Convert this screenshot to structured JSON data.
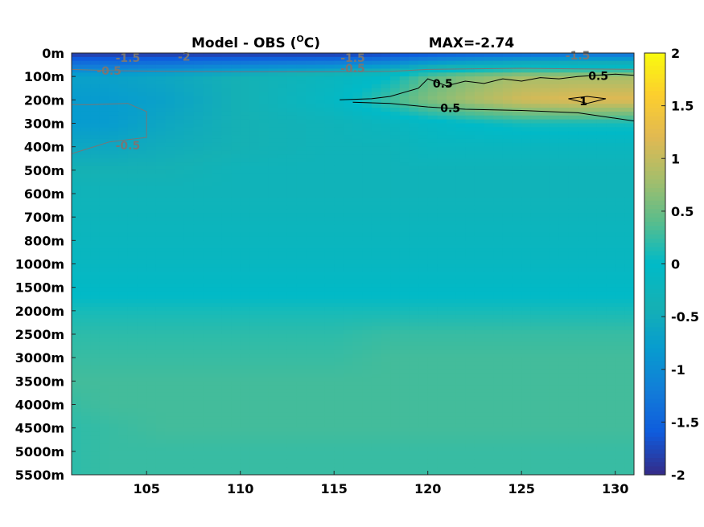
{
  "chart_data": {
    "type": "heatmap",
    "title_left": "Model - OBS (",
    "title_unit_sup": "O",
    "title_unit_rest": "C)",
    "title_right": "MAX=-2.74",
    "x_ticks": [
      105,
      110,
      115,
      120,
      125,
      130
    ],
    "xlim": [
      101,
      131
    ],
    "y_tick_labels": [
      "0m",
      "100m",
      "200m",
      "300m",
      "400m",
      "500m",
      "600m",
      "700m",
      "800m",
      "1000m",
      "1500m",
      "2000m",
      "2500m",
      "3000m",
      "3500m",
      "4000m",
      "4500m",
      "5000m",
      "5500m"
    ],
    "y_levels": [
      0,
      100,
      200,
      300,
      400,
      500,
      600,
      700,
      800,
      1000,
      1500,
      2000,
      2500,
      3000,
      3500,
      4000,
      4500,
      5000,
      5500
    ],
    "colorbar": {
      "min": -2,
      "max": 2,
      "ticks": [
        2,
        1.5,
        1,
        0.5,
        0,
        -0.5,
        -1,
        -1.5,
        -2
      ],
      "colormap": "parula"
    },
    "field": {
      "x": [
        101,
        103,
        106,
        110,
        115,
        118,
        120,
        122,
        125,
        128,
        131
      ],
      "values_by_level": [
        [
          -1.9,
          -1.9,
          -1.9,
          -1.9,
          -1.9,
          -1.8,
          -1.7,
          -1.6,
          -1.5,
          -1.4,
          -1.4
        ],
        [
          -0.7,
          -0.7,
          -0.6,
          -0.4,
          -0.2,
          0.0,
          0.4,
          0.6,
          0.8,
          0.8,
          0.8
        ],
        [
          -0.8,
          -0.8,
          -0.7,
          -0.4,
          -0.1,
          0.3,
          0.6,
          0.8,
          1.1,
          1.2,
          1.2
        ],
        [
          -0.8,
          -0.8,
          -0.6,
          -0.4,
          -0.3,
          -0.2,
          -0.1,
          0.0,
          0.1,
          0.1,
          0.1
        ],
        [
          -0.6,
          -0.6,
          -0.5,
          -0.4,
          -0.3,
          -0.3,
          -0.2,
          -0.2,
          -0.2,
          -0.2,
          -0.2
        ],
        [
          -0.4,
          -0.4,
          -0.4,
          -0.3,
          -0.3,
          -0.3,
          -0.3,
          -0.3,
          -0.3,
          -0.3,
          -0.3
        ],
        [
          -0.3,
          -0.3,
          -0.3,
          -0.3,
          -0.3,
          -0.3,
          -0.3,
          -0.3,
          -0.3,
          -0.3,
          -0.3
        ],
        [
          -0.25,
          -0.25,
          -0.25,
          -0.25,
          -0.25,
          -0.25,
          -0.25,
          -0.25,
          -0.25,
          -0.25,
          -0.25
        ],
        [
          -0.2,
          -0.2,
          -0.2,
          -0.2,
          -0.2,
          -0.2,
          -0.2,
          -0.2,
          -0.2,
          -0.2,
          -0.2
        ],
        [
          -0.15,
          -0.15,
          -0.15,
          -0.15,
          -0.15,
          -0.15,
          -0.15,
          -0.15,
          -0.15,
          -0.15,
          -0.15
        ],
        [
          -0.05,
          -0.05,
          -0.05,
          -0.05,
          -0.05,
          -0.05,
          -0.05,
          -0.05,
          -0.05,
          -0.05,
          -0.05
        ],
        [
          0.1,
          0.1,
          0.1,
          0.1,
          0.1,
          0.1,
          0.1,
          0.1,
          0.1,
          0.1,
          0.1
        ],
        [
          0.2,
          0.2,
          0.2,
          0.2,
          0.2,
          0.25,
          0.25,
          0.25,
          0.25,
          0.25,
          0.25
        ],
        [
          0.25,
          0.25,
          0.25,
          0.25,
          0.25,
          0.3,
          0.3,
          0.3,
          0.3,
          0.3,
          0.3
        ],
        [
          0.3,
          0.3,
          0.3,
          0.3,
          0.3,
          0.3,
          0.3,
          0.3,
          0.3,
          0.3,
          0.3
        ],
        [
          0.25,
          0.3,
          0.3,
          0.3,
          0.3,
          0.3,
          0.3,
          0.3,
          0.3,
          0.3,
          0.3
        ],
        [
          0.2,
          0.25,
          0.3,
          0.3,
          0.3,
          0.3,
          0.3,
          0.3,
          0.3,
          0.3,
          0.3
        ],
        [
          0.2,
          0.25,
          0.25,
          0.25,
          0.25,
          0.25,
          0.25,
          0.25,
          0.25,
          0.25,
          0.25
        ],
        [
          0.2,
          0.25,
          0.25,
          0.25,
          0.25,
          0.25,
          0.25,
          0.25,
          0.25,
          0.25,
          0.25
        ]
      ]
    },
    "contours": [
      {
        "level": "0.5",
        "color": "#000000",
        "points": [
          [
            115.3,
            200
          ],
          [
            117,
            195
          ],
          [
            118,
            185
          ],
          [
            119.5,
            150
          ],
          [
            120,
            110
          ],
          [
            121,
            140
          ],
          [
            122,
            120
          ],
          [
            123,
            130
          ],
          [
            124,
            110
          ],
          [
            125,
            120
          ],
          [
            126,
            105
          ],
          [
            127,
            110
          ],
          [
            128,
            100
          ],
          [
            129,
            95
          ],
          [
            130,
            90
          ],
          [
            131,
            95
          ]
        ]
      },
      {
        "level": "0.5",
        "color": "#000000",
        "points": [
          [
            116,
            210
          ],
          [
            118,
            215
          ],
          [
            120,
            230
          ],
          [
            122,
            240
          ],
          [
            125,
            245
          ],
          [
            128,
            255
          ],
          [
            131,
            290
          ]
        ]
      },
      {
        "level": "1",
        "color": "#000000",
        "points": [
          [
            127.5,
            195
          ],
          [
            128.5,
            185
          ],
          [
            129.5,
            195
          ],
          [
            128.5,
            215
          ],
          [
            127.5,
            195
          ]
        ]
      },
      {
        "level": "-0.5",
        "color": "#777777",
        "points": [
          [
            101,
            430
          ],
          [
            103,
            380
          ],
          [
            105,
            360
          ],
          [
            105,
            250
          ],
          [
            104,
            215
          ],
          [
            102,
            220
          ],
          [
            101,
            220
          ]
        ]
      },
      {
        "level": "-0.5",
        "color": "#777777",
        "points": [
          [
            101,
            70
          ],
          [
            103,
            75
          ],
          [
            106,
            78
          ],
          [
            110,
            80
          ],
          [
            115,
            80
          ],
          [
            118,
            78
          ],
          [
            120,
            70
          ],
          [
            125,
            65
          ],
          [
            128,
            68
          ],
          [
            131,
            70
          ]
        ]
      }
    ],
    "contour_labels": [
      {
        "text": "0.5",
        "x": 120.8,
        "y": 130,
        "color": "#000000"
      },
      {
        "text": "0.5",
        "x": 129.1,
        "y": 98,
        "color": "#000000"
      },
      {
        "text": "0.5",
        "x": 121.2,
        "y": 235,
        "color": "#000000"
      },
      {
        "text": "1",
        "x": 128.3,
        "y": 205,
        "color": "#000000"
      },
      {
        "text": "-0.5",
        "x": 104.0,
        "y": 395,
        "color": "#777777"
      },
      {
        "text": "-1.5",
        "x": 104.0,
        "y": 20,
        "color": "#777777"
      },
      {
        "text": "-2",
        "x": 107.0,
        "y": 15,
        "color": "#777777"
      },
      {
        "text": "-1.5",
        "x": 116.0,
        "y": 20,
        "color": "#777777"
      },
      {
        "text": "-1.5",
        "x": 128.0,
        "y": 10,
        "color": "#777777"
      },
      {
        "text": "-0.5",
        "x": 103.0,
        "y": 75,
        "color": "#777777"
      },
      {
        "text": "-0.5",
        "x": 116.0,
        "y": 65,
        "color": "#777777"
      }
    ]
  }
}
